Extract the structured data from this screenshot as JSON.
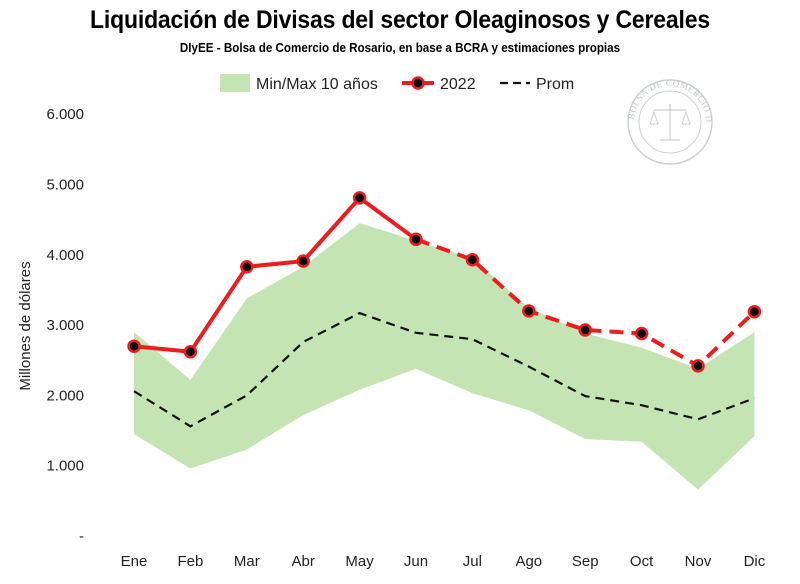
{
  "chart_data": {
    "type": "line",
    "title": "Liquidación de Divisas del sector Oleaginosos y Cereales",
    "subtitle": "DIyEE - Bolsa de Comercio de Rosario, en base a BCRA y estimaciones propias",
    "ylabel": "Millones de dólares",
    "xlabel": "",
    "categories": [
      "Ene",
      "Feb",
      "Mar",
      "Abr",
      "May",
      "Jun",
      "Jul",
      "Ago",
      "Sep",
      "Oct",
      "Nov",
      "Dic"
    ],
    "y_ticks": [
      "-",
      "1.000",
      "2.000",
      "3.000",
      "4.000",
      "5.000",
      "6.000"
    ],
    "ylim": [
      0,
      6000
    ],
    "legend_position": "top",
    "band": {
      "name": "Min/Max 10 años",
      "color": "#c5e4b3",
      "min": [
        1450,
        960,
        1230,
        1720,
        2080,
        2380,
        2030,
        1790,
        1380,
        1340,
        660,
        1420
      ],
      "max": [
        2900,
        2220,
        3380,
        3830,
        4450,
        4200,
        3950,
        3250,
        2880,
        2680,
        2380,
        2900
      ]
    },
    "series": [
      {
        "name": "2022",
        "color": "#ee1c1c",
        "values": [
          2700,
          2620,
          3830,
          3910,
          4810,
          4220,
          3930,
          3200,
          2930,
          2880,
          2420,
          3190
        ],
        "solid_until_index": 5
      },
      {
        "name": "Prom",
        "color": "#111111",
        "style": "dashed",
        "values": [
          2060,
          1560,
          2000,
          2760,
          3170,
          2890,
          2800,
          2410,
          1990,
          1860,
          1660,
          1960
        ]
      }
    ],
    "grid": false
  },
  "watermark": {
    "text": "BOLSA DE COMERCIO DE ROSARIO",
    "color": "#b8bcc8"
  }
}
